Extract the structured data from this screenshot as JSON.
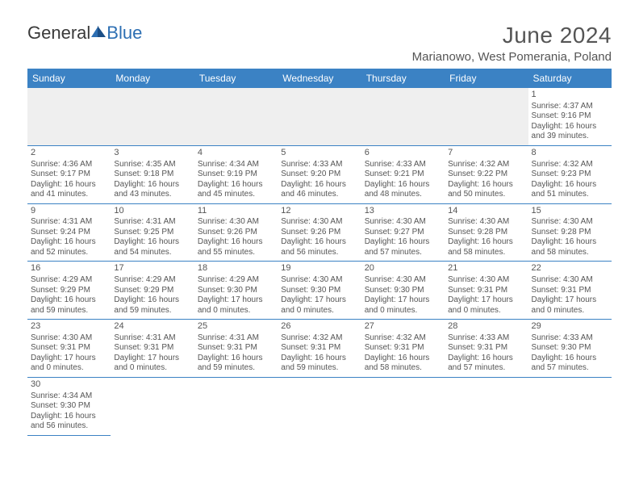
{
  "logo": {
    "text1": "General",
    "text2": "Blue"
  },
  "header": {
    "title": "June 2024",
    "subtitle": "Marianowo, West Pomerania, Poland"
  },
  "colors": {
    "header_bg": "#3b82c4",
    "header_text": "#ffffff",
    "cell_border": "#3b82c4",
    "text": "#555555",
    "blank_bg": "#efefef",
    "logo_blue": "#2d6fb3"
  },
  "weekdays": [
    "Sunday",
    "Monday",
    "Tuesday",
    "Wednesday",
    "Thursday",
    "Friday",
    "Saturday"
  ],
  "days": {
    "1": {
      "sunrise": "4:37 AM",
      "sunset": "9:16 PM",
      "daylight": "16 hours and 39 minutes."
    },
    "2": {
      "sunrise": "4:36 AM",
      "sunset": "9:17 PM",
      "daylight": "16 hours and 41 minutes."
    },
    "3": {
      "sunrise": "4:35 AM",
      "sunset": "9:18 PM",
      "daylight": "16 hours and 43 minutes."
    },
    "4": {
      "sunrise": "4:34 AM",
      "sunset": "9:19 PM",
      "daylight": "16 hours and 45 minutes."
    },
    "5": {
      "sunrise": "4:33 AM",
      "sunset": "9:20 PM",
      "daylight": "16 hours and 46 minutes."
    },
    "6": {
      "sunrise": "4:33 AM",
      "sunset": "9:21 PM",
      "daylight": "16 hours and 48 minutes."
    },
    "7": {
      "sunrise": "4:32 AM",
      "sunset": "9:22 PM",
      "daylight": "16 hours and 50 minutes."
    },
    "8": {
      "sunrise": "4:32 AM",
      "sunset": "9:23 PM",
      "daylight": "16 hours and 51 minutes."
    },
    "9": {
      "sunrise": "4:31 AM",
      "sunset": "9:24 PM",
      "daylight": "16 hours and 52 minutes."
    },
    "10": {
      "sunrise": "4:31 AM",
      "sunset": "9:25 PM",
      "daylight": "16 hours and 54 minutes."
    },
    "11": {
      "sunrise": "4:30 AM",
      "sunset": "9:26 PM",
      "daylight": "16 hours and 55 minutes."
    },
    "12": {
      "sunrise": "4:30 AM",
      "sunset": "9:26 PM",
      "daylight": "16 hours and 56 minutes."
    },
    "13": {
      "sunrise": "4:30 AM",
      "sunset": "9:27 PM",
      "daylight": "16 hours and 57 minutes."
    },
    "14": {
      "sunrise": "4:30 AM",
      "sunset": "9:28 PM",
      "daylight": "16 hours and 58 minutes."
    },
    "15": {
      "sunrise": "4:30 AM",
      "sunset": "9:28 PM",
      "daylight": "16 hours and 58 minutes."
    },
    "16": {
      "sunrise": "4:29 AM",
      "sunset": "9:29 PM",
      "daylight": "16 hours and 59 minutes."
    },
    "17": {
      "sunrise": "4:29 AM",
      "sunset": "9:29 PM",
      "daylight": "16 hours and 59 minutes."
    },
    "18": {
      "sunrise": "4:29 AM",
      "sunset": "9:30 PM",
      "daylight": "17 hours and 0 minutes."
    },
    "19": {
      "sunrise": "4:30 AM",
      "sunset": "9:30 PM",
      "daylight": "17 hours and 0 minutes."
    },
    "20": {
      "sunrise": "4:30 AM",
      "sunset": "9:30 PM",
      "daylight": "17 hours and 0 minutes."
    },
    "21": {
      "sunrise": "4:30 AM",
      "sunset": "9:31 PM",
      "daylight": "17 hours and 0 minutes."
    },
    "22": {
      "sunrise": "4:30 AM",
      "sunset": "9:31 PM",
      "daylight": "17 hours and 0 minutes."
    },
    "23": {
      "sunrise": "4:30 AM",
      "sunset": "9:31 PM",
      "daylight": "17 hours and 0 minutes."
    },
    "24": {
      "sunrise": "4:31 AM",
      "sunset": "9:31 PM",
      "daylight": "17 hours and 0 minutes."
    },
    "25": {
      "sunrise": "4:31 AM",
      "sunset": "9:31 PM",
      "daylight": "16 hours and 59 minutes."
    },
    "26": {
      "sunrise": "4:32 AM",
      "sunset": "9:31 PM",
      "daylight": "16 hours and 59 minutes."
    },
    "27": {
      "sunrise": "4:32 AM",
      "sunset": "9:31 PM",
      "daylight": "16 hours and 58 minutes."
    },
    "28": {
      "sunrise": "4:33 AM",
      "sunset": "9:31 PM",
      "daylight": "16 hours and 57 minutes."
    },
    "29": {
      "sunrise": "4:33 AM",
      "sunset": "9:30 PM",
      "daylight": "16 hours and 57 minutes."
    },
    "30": {
      "sunrise": "4:34 AM",
      "sunset": "9:30 PM",
      "daylight": "16 hours and 56 minutes."
    }
  },
  "labels": {
    "sunrise": "Sunrise: ",
    "sunset": "Sunset: ",
    "daylight": "Daylight: "
  },
  "layout": {
    "first_day_column": 6,
    "num_days": 30
  }
}
